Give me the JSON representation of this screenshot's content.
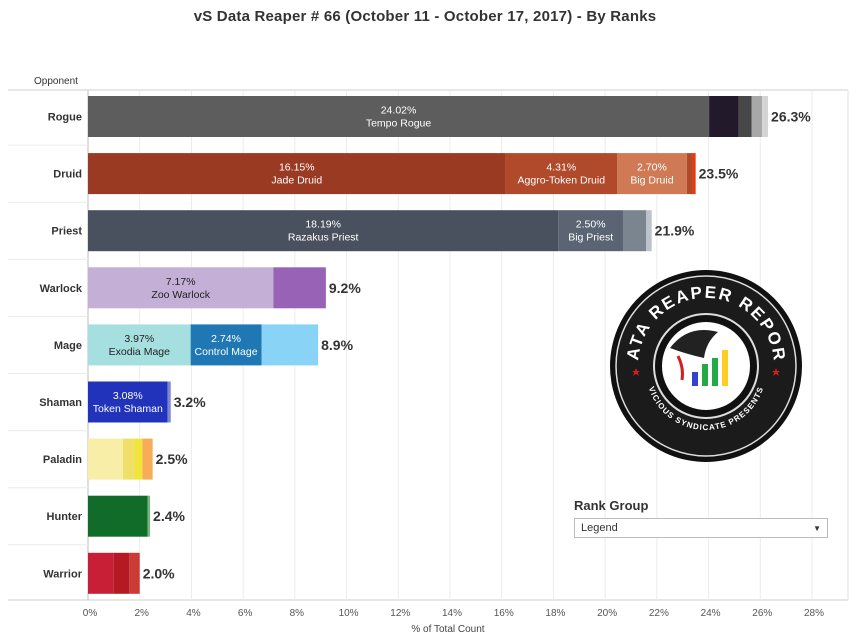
{
  "title": "vS Data Reaper #  66 (October 11 - October 17, 2017) - By Ranks",
  "rank_group": {
    "label": "Rank Group",
    "selected": "Legend"
  },
  "logo": {
    "top_text": "DATA REAPER REPORT",
    "bottom_text": "VICIOUS SYNDICATE PRESENTS"
  },
  "chart_data": {
    "type": "bar",
    "orientation": "horizontal",
    "stacked": true,
    "row_header": "Opponent",
    "xlabel": "% of Total Count",
    "xlim": [
      0,
      28
    ],
    "xticks": [
      "0%",
      "2%",
      "4%",
      "6%",
      "8%",
      "10%",
      "12%",
      "14%",
      "16%",
      "18%",
      "20%",
      "22%",
      "24%",
      "26%",
      "28%"
    ],
    "grid": true,
    "categories": [
      "Rogue",
      "Druid",
      "Priest",
      "Warlock",
      "Mage",
      "Shaman",
      "Paladin",
      "Hunter",
      "Warrior"
    ],
    "totals": [
      "26.3%",
      "23.5%",
      "21.9%",
      "9.2%",
      "8.9%",
      "3.2%",
      "2.5%",
      "2.4%",
      "2.0%"
    ],
    "rows": [
      {
        "class": "Rogue",
        "segments": [
          {
            "value": 24.02,
            "color": "#5d5d5d",
            "label": "24.02%",
            "archetype": "Tempo Rogue"
          },
          {
            "value": 1.15,
            "color": "#221a2b"
          },
          {
            "value": 0.5,
            "color": "#474747"
          },
          {
            "value": 0.4,
            "color": "#a8a8a8"
          },
          {
            "value": 0.23,
            "color": "#d4d4d4"
          }
        ]
      },
      {
        "class": "Druid",
        "segments": [
          {
            "value": 16.15,
            "color": "#9b3a23",
            "label": "16.15%",
            "archetype": "Jade Druid"
          },
          {
            "value": 4.31,
            "color": "#b14a2b",
            "label": "4.31%",
            "archetype": "Aggro-Token Druid"
          },
          {
            "value": 2.7,
            "color": "#cf7a55",
            "label": "2.70%",
            "archetype": "Big Druid"
          },
          {
            "value": 0.2,
            "color": "#b04a2b"
          },
          {
            "value": 0.14,
            "color": "#e03c10"
          }
        ]
      },
      {
        "class": "Priest",
        "segments": [
          {
            "value": 18.19,
            "color": "#4a515e",
            "label": "18.19%",
            "archetype": "Razakus Priest"
          },
          {
            "value": 2.5,
            "color": "#5a6472",
            "label": "2.50%",
            "archetype": "Big Priest"
          },
          {
            "value": 0.9,
            "color": "#7a8590"
          },
          {
            "value": 0.21,
            "color": "#bcc3ca"
          }
        ]
      },
      {
        "class": "Warlock",
        "segments": [
          {
            "value": 7.17,
            "color": "#c4afd6",
            "label": "7.17%",
            "archetype": "Zoo Warlock",
            "dark": true
          },
          {
            "value": 2.03,
            "color": "#9863b7"
          }
        ]
      },
      {
        "class": "Mage",
        "segments": [
          {
            "value": 3.97,
            "color": "#a5dfdf",
            "label": "3.97%",
            "archetype": "Exodia Mage",
            "dark": true
          },
          {
            "value": 2.74,
            "color": "#1f77b4",
            "label": "2.74%",
            "archetype": "Control Mage"
          },
          {
            "value": 2.19,
            "color": "#89d3f7"
          }
        ]
      },
      {
        "class": "Shaman",
        "segments": [
          {
            "value": 3.08,
            "color": "#2233bb",
            "label": "3.08%",
            "archetype": "Token Shaman"
          },
          {
            "value": 0.12,
            "color": "#7d88d0"
          }
        ]
      },
      {
        "class": "Paladin",
        "segments": [
          {
            "value": 1.35,
            "color": "#f9eea8"
          },
          {
            "value": 0.45,
            "color": "#efe06a"
          },
          {
            "value": 0.3,
            "color": "#f2e53a"
          },
          {
            "value": 0.4,
            "color": "#f7ad55"
          }
        ]
      },
      {
        "class": "Hunter",
        "segments": [
          {
            "value": 2.3,
            "color": "#116b29"
          },
          {
            "value": 0.1,
            "color": "#75b57f"
          }
        ]
      },
      {
        "class": "Warrior",
        "segments": [
          {
            "value": 1.0,
            "color": "#c81f37"
          },
          {
            "value": 0.6,
            "color": "#b51a22"
          },
          {
            "value": 0.4,
            "color": "#cc3a35"
          }
        ]
      }
    ]
  }
}
